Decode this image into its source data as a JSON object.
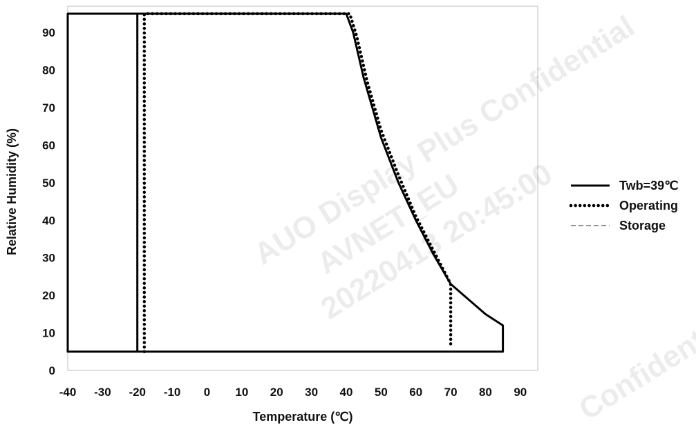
{
  "chart_data": {
    "type": "line",
    "title": "",
    "xlabel": "Temperature (℃)",
    "ylabel": "Relative Humidity (%)",
    "xlim": [
      -40,
      95
    ],
    "ylim": [
      0,
      97
    ],
    "x_ticks": [
      -40,
      -30,
      -20,
      -10,
      0,
      10,
      20,
      30,
      40,
      50,
      60,
      70,
      80,
      90
    ],
    "y_ticks": [
      0,
      10,
      20,
      30,
      40,
      50,
      60,
      70,
      80,
      90
    ],
    "grid": false,
    "legend_position": "right",
    "series": [
      {
        "name": "Twb=39℃",
        "style": "solid",
        "color": "#000000",
        "points": [
          [
            -20,
            5
          ],
          [
            -20,
            95
          ],
          [
            40,
            95
          ],
          [
            42,
            90
          ],
          [
            45,
            78
          ],
          [
            50,
            62
          ],
          [
            55,
            50
          ],
          [
            60,
            40
          ],
          [
            65,
            31
          ],
          [
            70,
            23
          ],
          [
            75,
            19
          ],
          [
            80,
            15
          ],
          [
            85,
            12
          ],
          [
            85,
            5
          ],
          [
            -40,
            5
          ],
          [
            -40,
            95
          ],
          [
            -20,
            95
          ]
        ]
      },
      {
        "name": "Operating",
        "style": "dotted",
        "color": "#000000",
        "points": [
          [
            -18,
            5
          ],
          [
            -18,
            95
          ],
          [
            41,
            95
          ],
          [
            43,
            89
          ],
          [
            46,
            77
          ],
          [
            50,
            64
          ],
          [
            55,
            52
          ],
          [
            60,
            41
          ],
          [
            65,
            32
          ],
          [
            70,
            23
          ],
          [
            70,
            6
          ]
        ]
      },
      {
        "name": "Storage",
        "style": "dashed",
        "color": "#808080",
        "points": [
          [
            -20,
            5
          ],
          [
            -20,
            95
          ]
        ]
      }
    ]
  },
  "watermark": {
    "lines": [
      "AUO Display Plus Confidential",
      "AVNET_EU",
      "20220413 20:45:00"
    ],
    "corner_text": "Confidential"
  }
}
